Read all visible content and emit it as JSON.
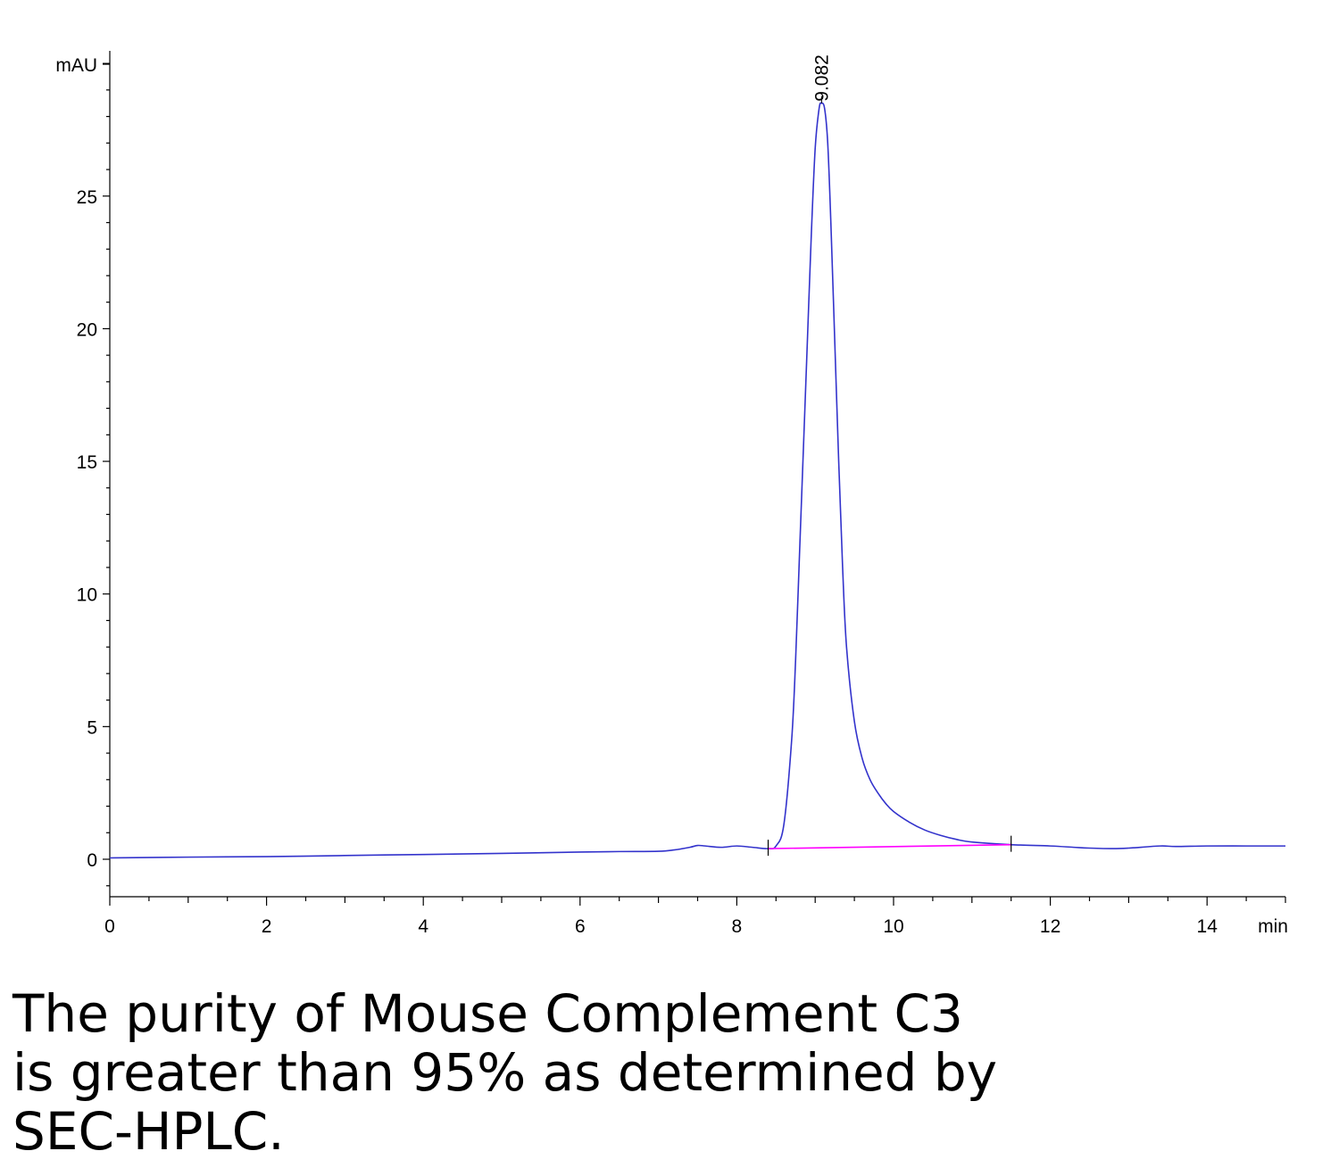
{
  "caption": "The purity of Mouse Complement C3 is greater than 95% as determined by SEC-HPLC.",
  "chart_data": {
    "type": "line",
    "title": "",
    "xlabel": "min",
    "ylabel": "mAU",
    "xlim": [
      0,
      15
    ],
    "ylim": [
      -1.5,
      30.7
    ],
    "x_ticks": [
      0,
      2,
      4,
      6,
      8,
      10,
      12,
      14
    ],
    "y_ticks": [
      0,
      5,
      10,
      15,
      20,
      25
    ],
    "x_tick_labels": [
      "0",
      "2",
      "4",
      "6",
      "8",
      "10",
      "12",
      "14"
    ],
    "y_tick_labels": [
      "0",
      "5",
      "10",
      "15",
      "20",
      "25"
    ],
    "grid": false,
    "series": [
      {
        "color": "#3333cc",
        "x": [
          0,
          1,
          2,
          3,
          4,
          5,
          6,
          6.5,
          7,
          7.2,
          7.4,
          7.5,
          7.6,
          7.8,
          8.0,
          8.2,
          8.4,
          8.5,
          8.6,
          8.7,
          8.75,
          8.8,
          8.85,
          8.9,
          8.95,
          9.0,
          9.05,
          9.08,
          9.12,
          9.16,
          9.2,
          9.25,
          9.3,
          9.35,
          9.4,
          9.5,
          9.6,
          9.7,
          9.8,
          9.9,
          10.0,
          10.2,
          10.4,
          10.6,
          10.8,
          11.0,
          11.5,
          12.0,
          12.3,
          12.5,
          12.8,
          13.0,
          13.4,
          13.6,
          14.0,
          14.5,
          15.0
        ],
        "y": [
          0.05,
          0.08,
          0.1,
          0.14,
          0.18,
          0.22,
          0.27,
          0.29,
          0.3,
          0.35,
          0.45,
          0.52,
          0.5,
          0.45,
          0.5,
          0.45,
          0.4,
          0.5,
          1.3,
          4.5,
          7.5,
          11.5,
          15.5,
          19.5,
          23.5,
          26.8,
          28.3,
          28.5,
          28.3,
          27.0,
          24.0,
          19.5,
          15.0,
          11.0,
          8.0,
          5.2,
          3.8,
          3.0,
          2.5,
          2.1,
          1.8,
          1.4,
          1.1,
          0.9,
          0.75,
          0.65,
          0.55,
          0.5,
          0.45,
          0.42,
          0.4,
          0.42,
          0.5,
          0.48,
          0.5,
          0.5,
          0.5
        ]
      },
      {
        "color": "#ff00ff",
        "x": [
          8.4,
          11.5
        ],
        "y": [
          0.4,
          0.55
        ]
      }
    ],
    "annotations": [
      {
        "text": "9.082",
        "x": 9.082,
        "y": 28.5
      }
    ],
    "baseline_markers_x": [
      8.4,
      11.5
    ]
  }
}
